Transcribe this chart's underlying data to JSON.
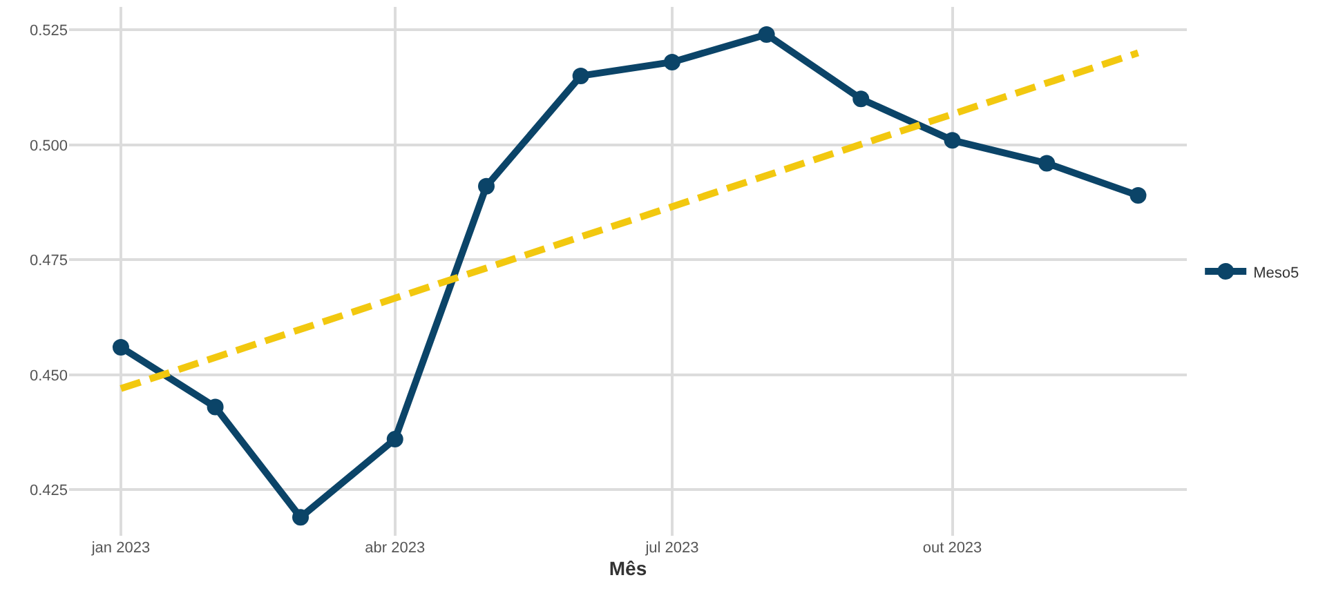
{
  "chart_data": {
    "type": "line",
    "xlabel": "Mês",
    "x": [
      "2023-01-01",
      "2023-02-01",
      "2023-03-01",
      "2023-04-01",
      "2023-05-01",
      "2023-06-01",
      "2023-07-01",
      "2023-08-01",
      "2023-09-01",
      "2023-10-01",
      "2023-11-01",
      "2023-12-01"
    ],
    "series": [
      {
        "name": "Meso5",
        "color": "#0b4468",
        "marker": "circle",
        "line_style": "solid",
        "values": [
          0.456,
          0.443,
          0.419,
          0.436,
          0.491,
          0.515,
          0.518,
          0.524,
          0.51,
          0.501,
          0.496,
          0.489
        ]
      },
      {
        "type": "line",
        "color": "#f2c80f",
        "marker": "none",
        "line_style": "dashed",
        "x": [
          "2023-01-01",
          "2023-12-01"
        ],
        "values": [
          0.447,
          0.52
        ]
      }
    ],
    "xlim": [
      "2022-12-15",
      "2023-12-17"
    ],
    "xticks": [
      {
        "value": "2023-01-01",
        "label": "jan 2023"
      },
      {
        "value": "2023-04-01",
        "label": "abr 2023"
      },
      {
        "value": "2023-07-01",
        "label": "jul 2023"
      },
      {
        "value": "2023-10-01",
        "label": "out 2023"
      }
    ],
    "ylim": [
      0.415,
      0.53
    ],
    "yticks": [
      {
        "value": 0.425,
        "label": "0.425"
      },
      {
        "value": 0.45,
        "label": "0.450"
      },
      {
        "value": 0.475,
        "label": "0.475"
      },
      {
        "value": 0.5,
        "label": "0.500"
      },
      {
        "value": 0.525,
        "label": "0.525"
      }
    ],
    "grid": true,
    "legend": "right"
  }
}
